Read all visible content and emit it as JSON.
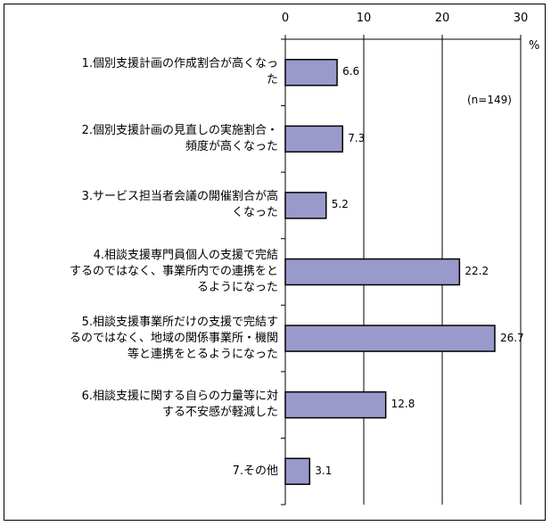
{
  "chart_data": {
    "type": "bar",
    "orientation": "horizontal",
    "categories": [
      "1.個別支援計画の作成割合が高くなった",
      "2.個別支援計画の見直しの実施割合・頻度が高くなった",
      "3.サービス担当者会議の開催割合が高くなった",
      "4.相談支援専門員個人の支援で完結するのではなく、事業所内での連携をとるようになった",
      "5.相談支援事業所だけの支援で完結するのではなく、地域の関係事業所・機関等と連携をとるようになった",
      "6.相談支援に関する自らの力量等に対する不安感が軽減した",
      "7.その他"
    ],
    "label_lines": [
      [
        "1.個別支援計画の作成割合が高くなっ",
        "た"
      ],
      [
        "2.個別支援計画の見直しの実施割合・",
        "頻度が高くなった"
      ],
      [
        "3.サービス担当者会議の開催割合が高",
        "くなった"
      ],
      [
        "4.相談支援専門員個人の支援で完結",
        "するのではなく、事業所内での連携をと",
        "るようになった"
      ],
      [
        "5.相談支援事業所だけの支援で完結す",
        "るのではなく、地域の関係事業所・機関",
        "等と連携をとるようになった"
      ],
      [
        "6.相談支援に関する自らの力量等に対",
        "する不安感が軽減した"
      ],
      [
        "7.その他"
      ]
    ],
    "values": [
      6.6,
      7.3,
      5.2,
      22.2,
      26.7,
      12.8,
      3.1
    ],
    "value_labels": [
      "6.6",
      "7.3",
      "5.2",
      "22.2",
      "26.7",
      "12.8",
      "3.1"
    ],
    "xlim": [
      0,
      30
    ],
    "x_ticks": [
      0,
      10,
      20,
      30
    ],
    "x_tick_labels": [
      "0",
      "10",
      "20",
      "30"
    ],
    "unit": "%",
    "annotation": "(n=149)",
    "grid": "vertical",
    "bar_color": "#9999cc",
    "bar_edge_color": "#000000"
  }
}
